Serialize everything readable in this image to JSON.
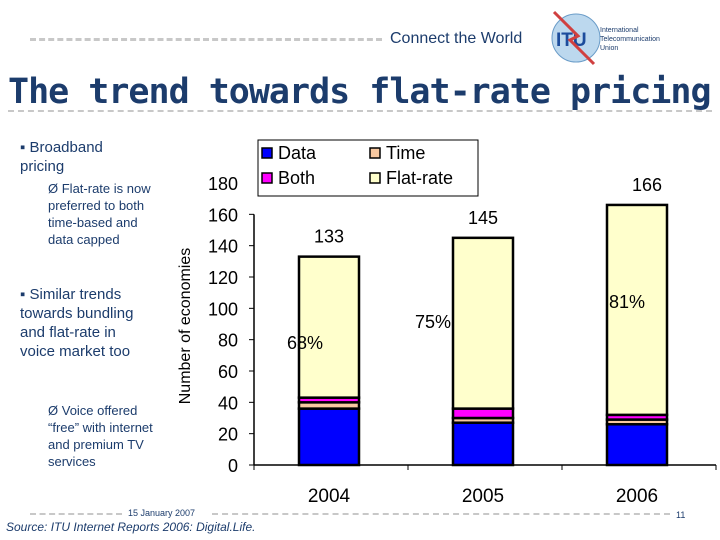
{
  "header": {
    "tagline": "Connect the World",
    "logo_text": "ITU",
    "logo_org": [
      "International",
      "Telecommunication",
      "Union"
    ]
  },
  "title": "The trend towards flat-rate pricing",
  "bullets": [
    {
      "text": "Broadband pricing",
      "sub": [
        "Flat-rate is now preferred to both time-based and data capped"
      ]
    },
    {
      "text": "Similar trends towards bundling and flat-rate in voice market too",
      "sub": [
        "Voice offered “free” with internet and premium TV services"
      ]
    }
  ],
  "footer": {
    "date": "15 January 2007",
    "source": "Source: ITU Internet Reports 2006: Digital.Life.",
    "page": "11"
  },
  "chart_data": {
    "type": "bar",
    "stacked": true,
    "categories": [
      "2004",
      "2005",
      "2006"
    ],
    "ylabel": "Number of economies",
    "ylim": [
      0,
      180
    ],
    "yticks": [
      0,
      20,
      40,
      60,
      80,
      100,
      120,
      140,
      160,
      180
    ],
    "series": [
      {
        "name": "Data",
        "color": "#0000ff",
        "values": [
          36,
          27,
          26
        ]
      },
      {
        "name": "Time",
        "color": "#f8c8a0",
        "values": [
          4,
          3,
          3
        ]
      },
      {
        "name": "Both",
        "color": "#ff00ff",
        "values": [
          3,
          6,
          3
        ]
      },
      {
        "name": "Flat-rate",
        "color": "#ffffcc",
        "values": [
          90,
          109,
          134
        ]
      }
    ],
    "totals": [
      "133",
      "145",
      "166"
    ],
    "flat_share": [
      "68%",
      "75%",
      "81%"
    ],
    "legend": "top"
  }
}
